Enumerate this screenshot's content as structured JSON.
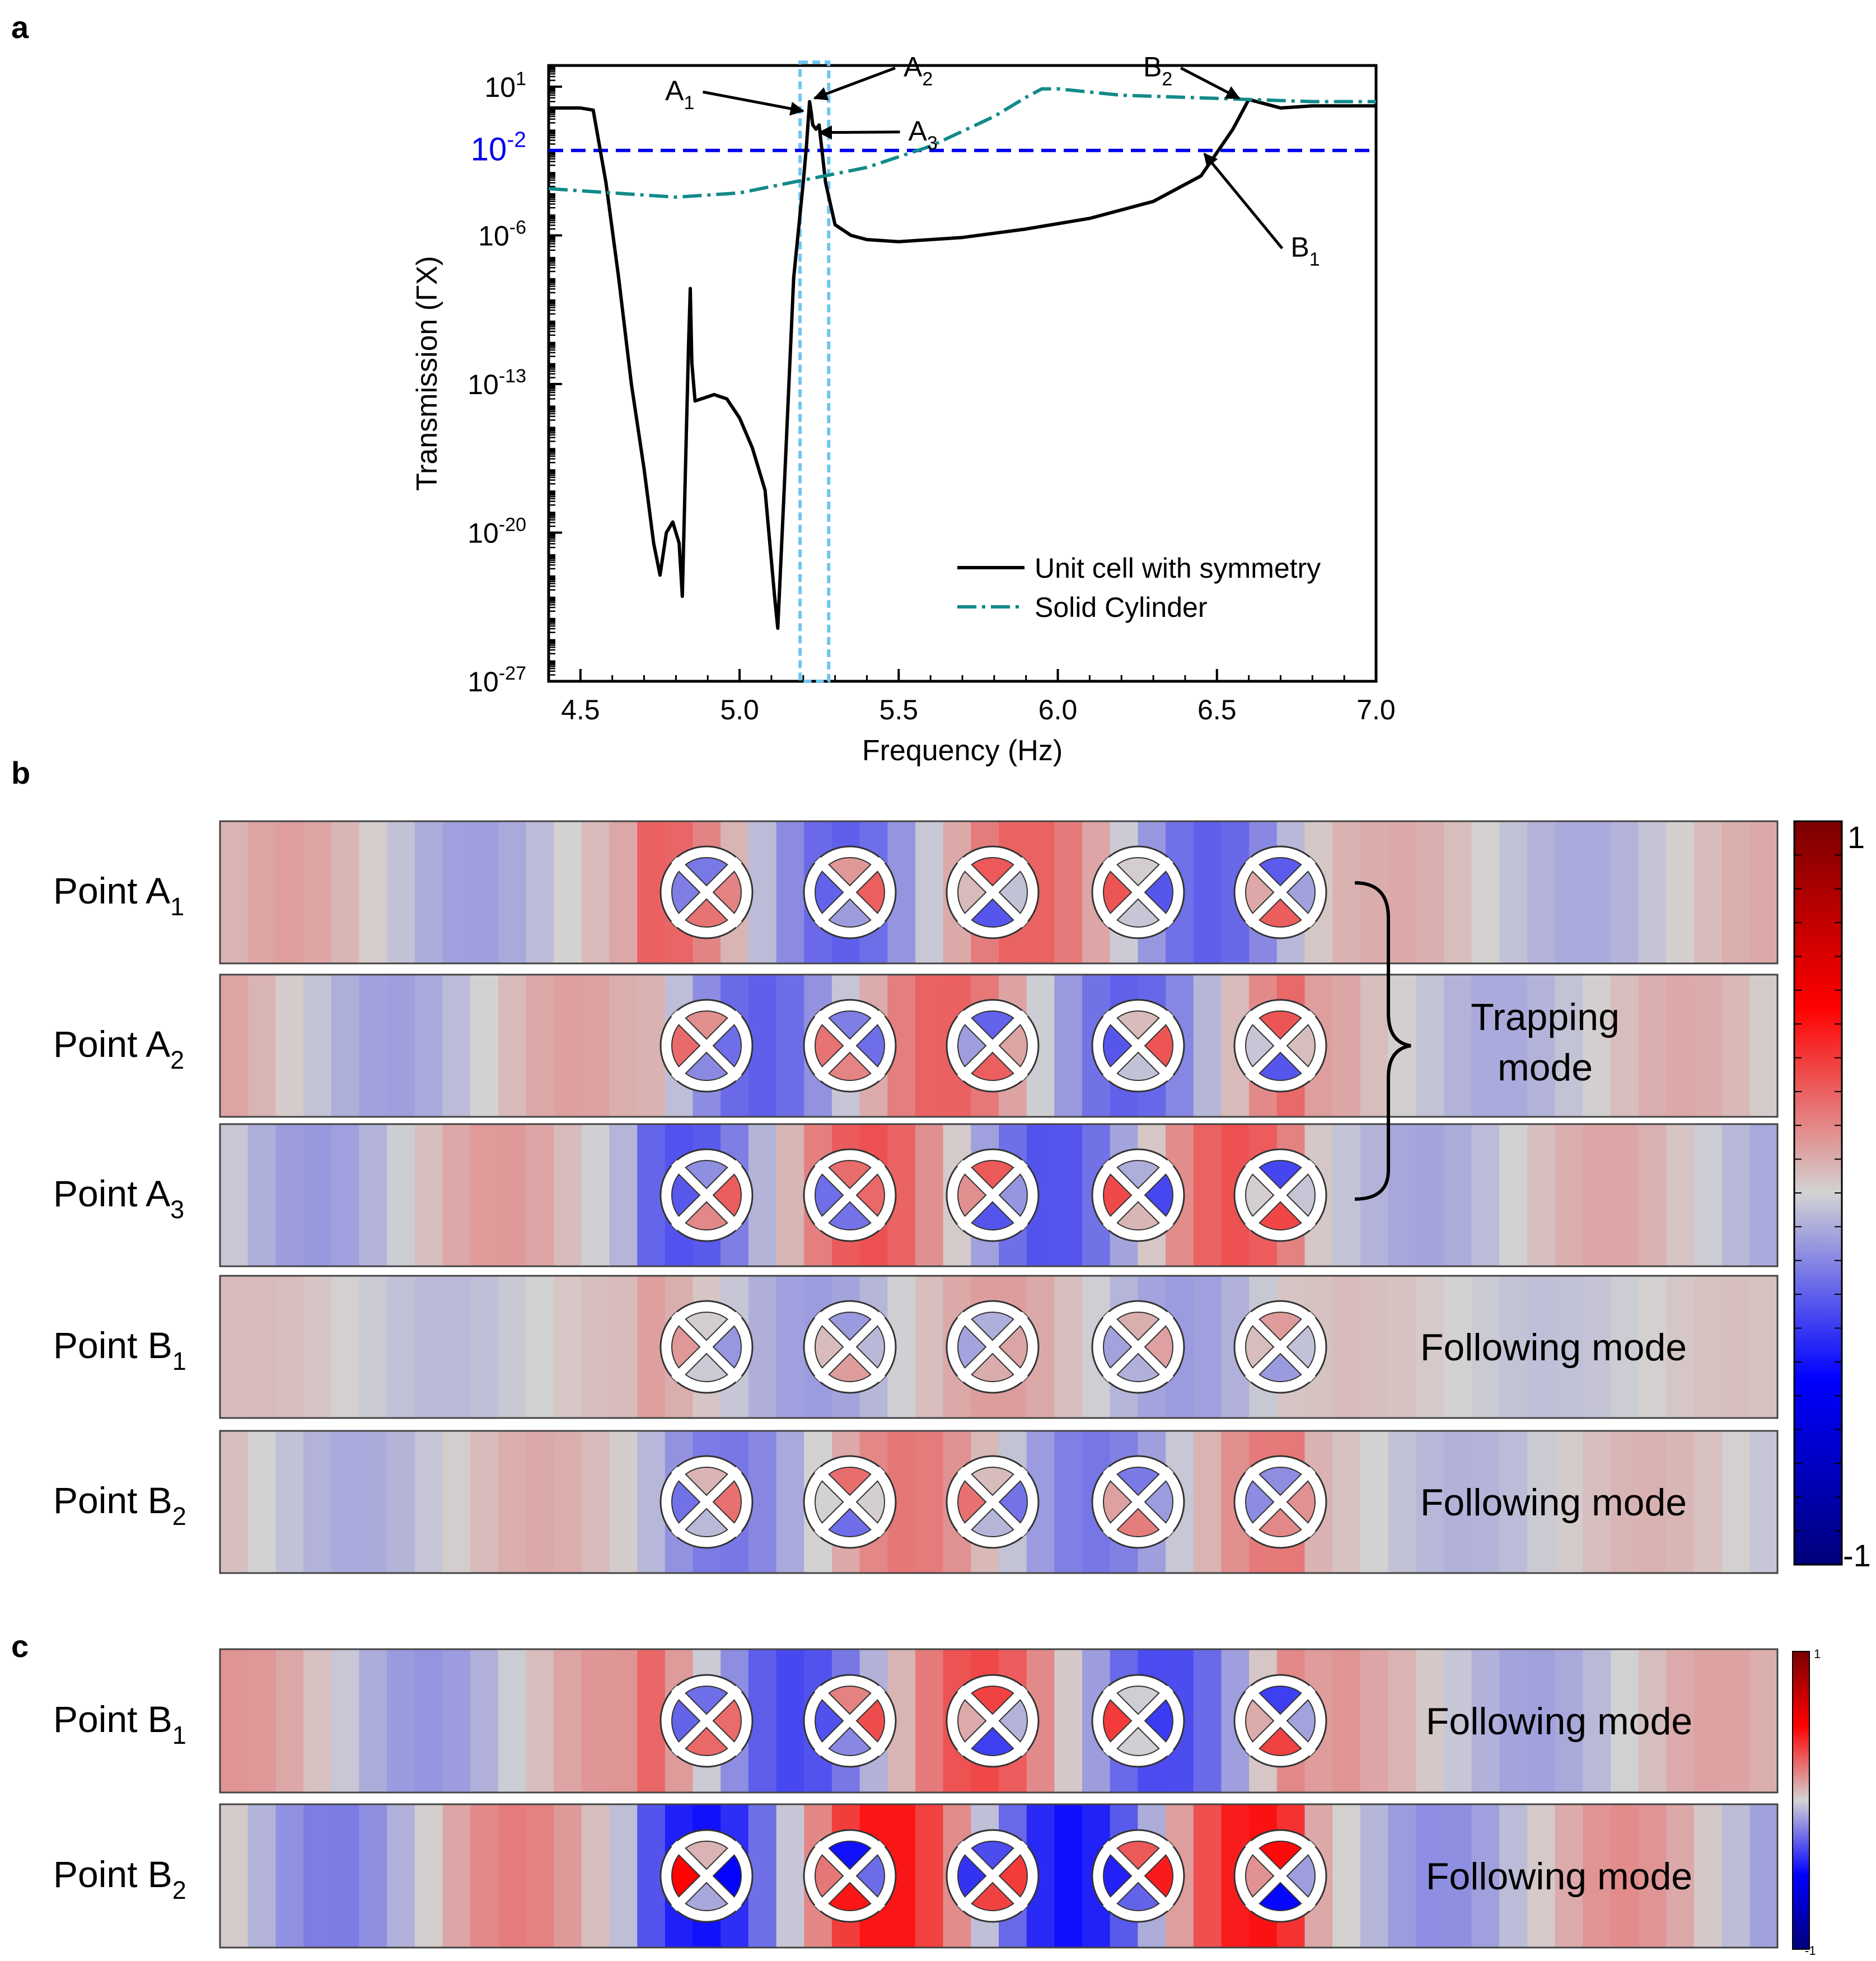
{
  "panel_labels": {
    "a": "a",
    "b": "b",
    "c": "c"
  },
  "colors": {
    "unit_cell": "#000000",
    "solid_cylinder": "#128a8a",
    "threshold": "#0000ee",
    "highlight_box": "#6ec6f0",
    "field_positive": "#ff0000",
    "field_negative": "#0000ff",
    "field_neutral": "#d3d3d3"
  },
  "chart_data": {
    "type": "line",
    "xlabel": "Frequency (Hz)",
    "ylabel": "Transmission (ΓX)",
    "xlim": [
      4.4,
      7.0
    ],
    "ylim_log10": [
      -27,
      2
    ],
    "y_scale": "log",
    "x_ticks": [
      "4.5",
      "5.0",
      "5.5",
      "6.0",
      "6.5",
      "7.0"
    ],
    "x_tick_values": [
      4.5,
      5.0,
      5.5,
      6.0,
      6.5,
      7.0
    ],
    "y_ticks": [
      {
        "base": "10",
        "exp": "1",
        "log10": 1
      },
      {
        "base": "10",
        "exp": "-2",
        "log10": -2
      },
      {
        "base": "10",
        "exp": "-6",
        "log10": -6
      },
      {
        "base": "10",
        "exp": "-13",
        "log10": -13
      },
      {
        "base": "10",
        "exp": "-20",
        "log10": -20
      },
      {
        "base": "10",
        "exp": "-27",
        "log10": -27
      }
    ],
    "threshold_log10": -2,
    "legend_position": "bottom-right",
    "series": [
      {
        "name": "Unit cell with symmetry",
        "style": "solid",
        "x": [
          4.4,
          4.45,
          4.5,
          4.54,
          4.58,
          4.62,
          4.66,
          4.7,
          4.73,
          4.75,
          4.77,
          4.79,
          4.81,
          4.82,
          4.83,
          4.84,
          4.845,
          4.85,
          4.86,
          4.88,
          4.92,
          4.96,
          5.0,
          5.04,
          5.08,
          5.11,
          5.12,
          5.14,
          5.17,
          5.2,
          5.21,
          5.22,
          5.225,
          5.23,
          5.24,
          5.25,
          5.27,
          5.3,
          5.35,
          5.4,
          5.5,
          5.7,
          5.9,
          6.1,
          6.3,
          6.45,
          6.55,
          6.6,
          6.65,
          6.7,
          6.8,
          7.0
        ],
        "log10": [
          0.0,
          0.0,
          0.0,
          -0.1,
          -3.5,
          -8.0,
          -13.0,
          -17.0,
          -20.5,
          -22.0,
          -20.0,
          -19.5,
          -20.5,
          -23.0,
          -17.0,
          -11.0,
          -8.5,
          -12.0,
          -13.8,
          -13.7,
          -13.5,
          -13.7,
          -14.6,
          -16.0,
          -18.0,
          -23.0,
          -24.5,
          -18.0,
          -8.0,
          -3.5,
          -1.8,
          0.3,
          -0.2,
          -0.8,
          -1.0,
          -0.8,
          -3.5,
          -5.5,
          -6.0,
          -6.2,
          -6.3,
          -6.1,
          -5.7,
          -5.2,
          -4.4,
          -3.2,
          -1.0,
          0.4,
          0.2,
          0.0,
          0.1,
          0.1
        ]
      },
      {
        "name": "Solid Cylinder",
        "style": "dash-dot",
        "x": [
          4.4,
          4.6,
          4.8,
          5.0,
          5.2,
          5.4,
          5.6,
          5.8,
          5.9,
          5.95,
          6.0,
          6.2,
          6.4,
          6.6,
          6.8,
          7.0
        ],
        "log10": [
          -3.8,
          -4.0,
          -4.2,
          -4.0,
          -3.4,
          -2.8,
          -1.8,
          -0.4,
          0.5,
          0.9,
          0.9,
          0.6,
          0.5,
          0.4,
          0.3,
          0.3
        ]
      }
    ],
    "annotations": [
      {
        "base": "A",
        "sub": "1",
        "x": 5.21,
        "log10": -0.3
      },
      {
        "base": "A",
        "sub": "2",
        "x": 5.225,
        "log10": 0.3
      },
      {
        "base": "A",
        "sub": "3",
        "x": 5.24,
        "log10": -1.0
      },
      {
        "base": "B",
        "sub": "1",
        "x": 6.45,
        "log10": -2.0
      },
      {
        "base": "B",
        "sub": "2",
        "x": 6.58,
        "log10": 0.3
      }
    ],
    "highlight_x_range": [
      5.19,
      5.28
    ]
  },
  "panel_b": {
    "rows": [
      {
        "label_base": "Point A",
        "label_sub": "1",
        "right_text": ""
      },
      {
        "label_base": "Point A",
        "label_sub": "2",
        "right_text": ""
      },
      {
        "label_base": "Point A",
        "label_sub": "3",
        "right_text": ""
      },
      {
        "label_base": "Point B",
        "label_sub": "1",
        "right_text": "Following mode"
      },
      {
        "label_base": "Point B",
        "label_sub": "2",
        "right_text": "Following mode"
      }
    ],
    "brace_text_line1": "Trapping",
    "brace_text_line2": "mode",
    "colorbar_max": "1",
    "colorbar_min": "-1"
  },
  "panel_c": {
    "rows": [
      {
        "label_base": "Point B",
        "label_sub": "1",
        "right_text": "Following mode"
      },
      {
        "label_base": "Point B",
        "label_sub": "2",
        "right_text": "Following mode"
      }
    ],
    "colorbar_max": "1",
    "colorbar_min": "-1"
  }
}
